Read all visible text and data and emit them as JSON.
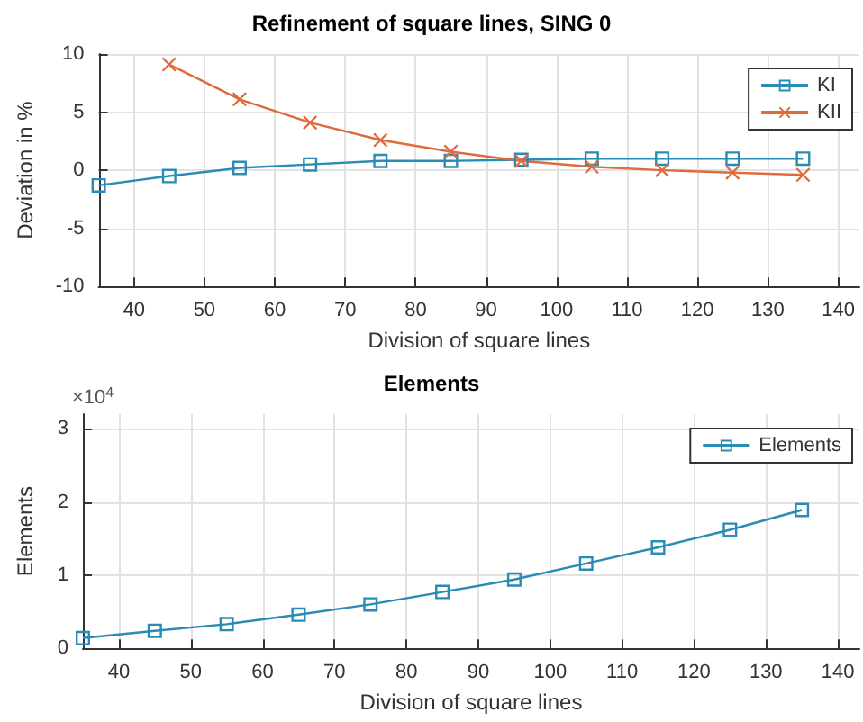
{
  "chart_data": [
    {
      "type": "line",
      "title": "Refinement of square lines, SING 0",
      "xlabel": "Division of square lines",
      "ylabel": "Deviation in %",
      "x": [
        35,
        45,
        55,
        65,
        75,
        85,
        95,
        105,
        115,
        125,
        135
      ],
      "series": [
        {
          "name": "KI",
          "color": "#2a8bb5",
          "marker": "square",
          "values": [
            -1.3,
            -0.5,
            0.2,
            0.5,
            0.8,
            0.8,
            0.9,
            1,
            1,
            1,
            1
          ]
        },
        {
          "name": "KII",
          "color": "#e06a3c",
          "marker": "cross",
          "values": [
            null,
            9.1,
            6.1,
            4.1,
            2.6,
            1.6,
            0.8,
            0.3,
            0,
            -0.2,
            -0.4
          ]
        }
      ],
      "xlim": [
        35,
        143
      ],
      "xticks": [
        40,
        50,
        60,
        70,
        80,
        90,
        100,
        110,
        120,
        130,
        140
      ],
      "ylim": [
        -10,
        10
      ],
      "yticks": [
        -10,
        -5,
        0,
        5,
        10
      ],
      "grid": true,
      "legend": "top right"
    },
    {
      "type": "line",
      "title": "Elements",
      "xlabel": "Division of square lines",
      "ylabel": "Elements",
      "annotations": [
        "×10$^{4}$"
      ],
      "x": [
        35,
        45,
        55,
        65,
        75,
        85,
        95,
        105,
        115,
        125,
        135
      ],
      "series": [
        {
          "name": "Elements",
          "color": "#2a8bb5",
          "marker": "square",
          "values": [
            0.14,
            0.24,
            0.33,
            0.46,
            0.6,
            0.77,
            0.94,
            1.16,
            1.38,
            1.62,
            1.89
          ]
        }
      ],
      "xlim": [
        35,
        143
      ],
      "xticks": [
        40,
        50,
        60,
        70,
        80,
        90,
        100,
        110,
        120,
        130,
        140
      ],
      "ylim": [
        0,
        3.2
      ],
      "yticks": [
        0,
        1,
        2,
        3
      ],
      "grid": true,
      "legend": "top right"
    }
  ]
}
